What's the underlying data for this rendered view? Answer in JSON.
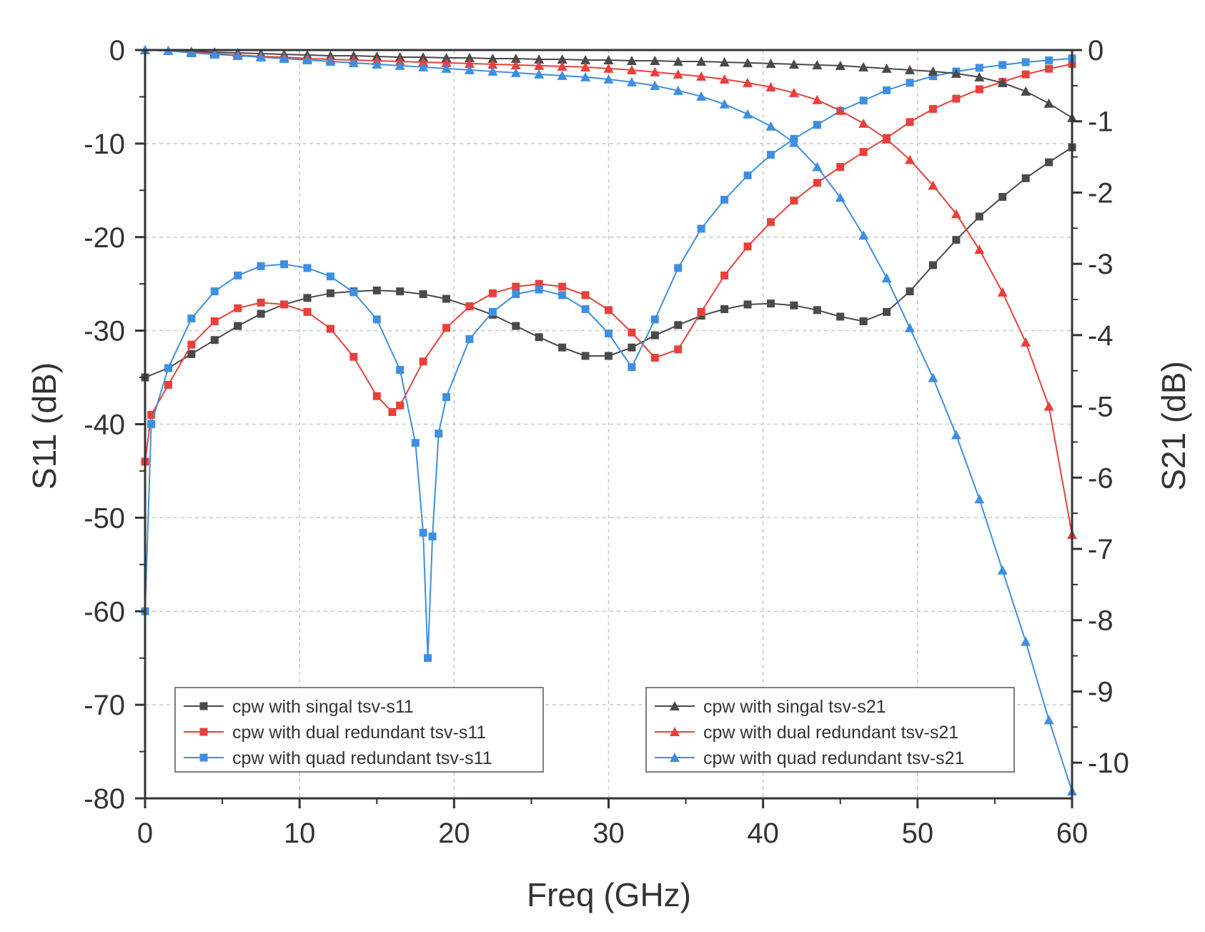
{
  "chart_data": {
    "type": "line",
    "title": "",
    "xlabel": "Freq (GHz)",
    "ylabel_left": "S11 (dB)",
    "ylabel_right": "S21 (dB)",
    "xlim": [
      0,
      60
    ],
    "ylim_left": [
      -80,
      0
    ],
    "ylim_right": [
      -10.5,
      0
    ],
    "x_ticks": [
      0,
      10,
      20,
      30,
      40,
      50,
      60
    ],
    "y_left_ticks": [
      0,
      -10,
      -20,
      -30,
      -40,
      -50,
      -60,
      -70,
      -80
    ],
    "y_right_ticks": [
      0,
      -1,
      -2,
      -3,
      -4,
      -5,
      -6,
      -7,
      -8,
      -9,
      -10
    ],
    "grid": true,
    "colors": {
      "black": "#4a4a4a",
      "red": "#e8403c",
      "blue": "#3f8fe0"
    },
    "legends": [
      {
        "position": "lower-left",
        "entries": [
          "cpw with singal tsv-s11",
          "cpw with dual redundant tsv-s11",
          "cpw with quad redundant tsv-s11"
        ]
      },
      {
        "position": "lower-right",
        "entries": [
          "cpw with singal tsv-s21",
          "cpw with dual redundant tsv-s21",
          "cpw with quad redundant tsv-s21"
        ]
      }
    ],
    "series": [
      {
        "name": "cpw with singal tsv-s11",
        "axis": "left",
        "marker": "square",
        "color": "#4a4a4a",
        "x": [
          0,
          1.5,
          3,
          4.5,
          6,
          7.5,
          9,
          10.5,
          12,
          13.5,
          15,
          16.5,
          18,
          19.5,
          21,
          22.5,
          24,
          25.5,
          27,
          28.5,
          30,
          31.5,
          33,
          34.5,
          36,
          37.5,
          39,
          40.5,
          42,
          43.5,
          45,
          46.5,
          48,
          49.5,
          51,
          52.5,
          54,
          55.5,
          57,
          58.5,
          60
        ],
        "values": [
          -35,
          -34,
          -32.5,
          -31,
          -29.5,
          -28.2,
          -27.2,
          -26.5,
          -26,
          -25.8,
          -25.7,
          -25.8,
          -26.1,
          -26.6,
          -27.4,
          -28.3,
          -29.5,
          -30.7,
          -31.8,
          -32.7,
          -32.7,
          -31.8,
          -30.5,
          -29.4,
          -28.4,
          -27.7,
          -27.2,
          -27.1,
          -27.3,
          -27.8,
          -28.5,
          -29,
          -28,
          -25.8,
          -23,
          -20.3,
          -17.8,
          -15.7,
          -13.7,
          -12,
          -10.4
        ]
      },
      {
        "name": "cpw with dual redundant tsv-s11",
        "axis": "left",
        "marker": "square",
        "color": "#e8403c",
        "x": [
          0,
          0.4,
          1.5,
          3,
          4.5,
          6,
          7.5,
          9,
          10.5,
          12,
          13.5,
          15,
          16,
          16.5,
          18,
          19.5,
          21,
          22.5,
          24,
          25.5,
          27,
          28.5,
          30,
          31.5,
          33,
          34.5,
          36,
          37.5,
          39,
          40.5,
          42,
          43.5,
          45,
          46.5,
          48,
          49.5,
          51,
          52.5,
          54,
          55.5,
          57,
          58.5,
          60
        ],
        "values": [
          -44,
          -39,
          -35.8,
          -31.5,
          -29,
          -27.6,
          -27,
          -27.2,
          -28,
          -29.8,
          -32.8,
          -37,
          -38.7,
          -38,
          -33.3,
          -29.7,
          -27.4,
          -26,
          -25.3,
          -25,
          -25.3,
          -26.2,
          -27.8,
          -30.2,
          -32.9,
          -32,
          -28,
          -24.1,
          -21,
          -18.4,
          -16.1,
          -14.2,
          -12.5,
          -10.9,
          -9.4,
          -7.7,
          -6.3,
          -5.2,
          -4.2,
          -3.4,
          -2.6,
          -2,
          -1.5
        ]
      },
      {
        "name": "cpw with quad redundant tsv-s11",
        "axis": "left",
        "marker": "square",
        "color": "#3f8fe0",
        "x": [
          0,
          0.4,
          1.5,
          3,
          4.5,
          6,
          7.5,
          9,
          10.5,
          12,
          13.5,
          15,
          16.5,
          17.5,
          18,
          18.3,
          18.6,
          19,
          19.5,
          21,
          22.5,
          24,
          25.5,
          27,
          28.5,
          30,
          31.5,
          33,
          34.5,
          36,
          37.5,
          39,
          40.5,
          42,
          43.5,
          45,
          46.5,
          48,
          49.5,
          51,
          52.5,
          54,
          55.5,
          57,
          58.5,
          60
        ],
        "values": [
          -60,
          -40,
          -34,
          -28.7,
          -25.8,
          -24.1,
          -23.1,
          -22.9,
          -23.3,
          -24.2,
          -25.9,
          -28.8,
          -34.2,
          -42,
          -51.6,
          -65,
          -52,
          -41,
          -37.1,
          -30.9,
          -28,
          -26.1,
          -25.6,
          -26.2,
          -27.7,
          -30.3,
          -33.9,
          -28.8,
          -23.3,
          -19.1,
          -16,
          -13.4,
          -11.2,
          -9.5,
          -8,
          -6.5,
          -5.4,
          -4.3,
          -3.5,
          -2.8,
          -2.3,
          -1.9,
          -1.6,
          -1.3,
          -1.1,
          -0.9
        ]
      },
      {
        "name": "cpw with singal tsv-s21",
        "axis": "right",
        "marker": "triangle",
        "color": "#4a4a4a",
        "x": [
          0,
          1.5,
          3,
          4.5,
          6,
          7.5,
          9,
          10.5,
          12,
          13.5,
          15,
          16.5,
          18,
          19.5,
          21,
          22.5,
          24,
          25.5,
          27,
          28.5,
          30,
          31.5,
          33,
          34.5,
          36,
          37.5,
          39,
          40.5,
          42,
          43.5,
          45,
          46.5,
          48,
          49.5,
          51,
          52.5,
          54,
          55.5,
          57,
          58.5,
          60
        ],
        "values": [
          0,
          -0.01,
          -0.02,
          -0.03,
          -0.04,
          -0.05,
          -0.06,
          -0.07,
          -0.08,
          -0.08,
          -0.09,
          -0.1,
          -0.1,
          -0.11,
          -0.11,
          -0.12,
          -0.12,
          -0.13,
          -0.13,
          -0.14,
          -0.14,
          -0.15,
          -0.15,
          -0.16,
          -0.16,
          -0.17,
          -0.18,
          -0.19,
          -0.2,
          -0.21,
          -0.22,
          -0.24,
          -0.26,
          -0.28,
          -0.3,
          -0.33,
          -0.38,
          -0.46,
          -0.58,
          -0.75,
          -0.95
        ]
      },
      {
        "name": "cpw with dual redundant tsv-s21",
        "axis": "right",
        "marker": "triangle",
        "color": "#e8403c",
        "x": [
          0,
          1.5,
          3,
          4.5,
          6,
          7.5,
          9,
          10.5,
          12,
          13.5,
          15,
          16.5,
          18,
          19.5,
          21,
          22.5,
          24,
          25.5,
          27,
          28.5,
          30,
          31.5,
          33,
          34.5,
          36,
          37.5,
          39,
          40.5,
          42,
          43.5,
          45,
          46.5,
          48,
          49.5,
          51,
          52.5,
          54,
          55.5,
          57,
          58.5,
          60
        ],
        "values": [
          0,
          -0.01,
          -0.03,
          -0.05,
          -0.07,
          -0.09,
          -0.1,
          -0.12,
          -0.13,
          -0.14,
          -0.15,
          -0.16,
          -0.17,
          -0.18,
          -0.19,
          -0.2,
          -0.21,
          -0.22,
          -0.23,
          -0.24,
          -0.26,
          -0.28,
          -0.31,
          -0.34,
          -0.37,
          -0.41,
          -0.46,
          -0.52,
          -0.6,
          -0.7,
          -0.85,
          -1.03,
          -1.25,
          -1.54,
          -1.9,
          -2.3,
          -2.8,
          -3.4,
          -4.1,
          -5,
          -6.8
        ]
      },
      {
        "name": "cpw with quad redundant tsv-s21",
        "axis": "right",
        "marker": "triangle",
        "color": "#3f8fe0",
        "x": [
          0,
          1.5,
          3,
          4.5,
          6,
          7.5,
          9,
          10.5,
          12,
          13.5,
          15,
          16.5,
          18,
          19.5,
          21,
          22.5,
          24,
          25.5,
          27,
          28.5,
          30,
          31.5,
          33,
          34.5,
          36,
          37.5,
          39,
          40.5,
          42,
          43.5,
          45,
          46.5,
          48,
          49.5,
          51,
          52.5,
          54,
          55.5,
          57,
          58.5,
          60
        ],
        "values": [
          0,
          -0.01,
          -0.04,
          -0.06,
          -0.08,
          -0.1,
          -0.12,
          -0.14,
          -0.16,
          -0.18,
          -0.2,
          -0.22,
          -0.24,
          -0.26,
          -0.28,
          -0.3,
          -0.32,
          -0.34,
          -0.36,
          -0.38,
          -0.41,
          -0.45,
          -0.5,
          -0.57,
          -0.65,
          -0.76,
          -0.9,
          -1.07,
          -1.3,
          -1.64,
          -2.07,
          -2.6,
          -3.2,
          -3.9,
          -4.6,
          -5.4,
          -6.3,
          -7.3,
          -8.3,
          -9.4,
          -10.4
        ]
      }
    ]
  }
}
